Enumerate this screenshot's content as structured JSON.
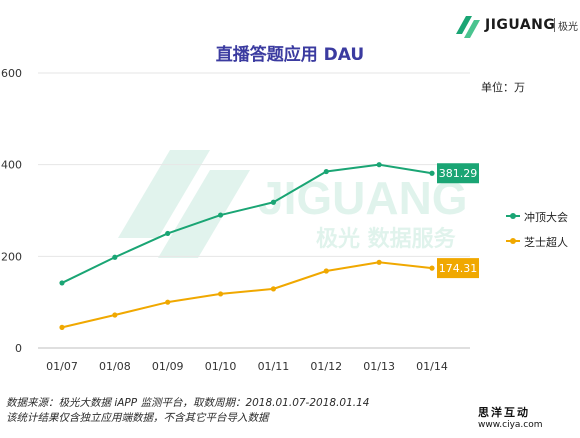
{
  "brand": {
    "name": "JIGUANG",
    "sub": "极光"
  },
  "title": "直播答题应用 DAU",
  "unit_label": "单位：万",
  "watermark_text": "极光 数据服务",
  "chart_data": {
    "type": "line",
    "title": "直播答题应用 DAU",
    "categories": [
      "01/07",
      "01/08",
      "01/09",
      "01/10",
      "01/11",
      "01/12",
      "01/13",
      "01/14"
    ],
    "y_ticks": [
      "0",
      "200",
      "400",
      "600"
    ],
    "ylim": [
      0,
      600
    ],
    "series": [
      {
        "name": "冲顶大会",
        "color": "#1aa574",
        "values": [
          142,
          198,
          250,
          290,
          318,
          385,
          400,
          381.29
        ],
        "end_label": "381.29"
      },
      {
        "name": "芝士超人",
        "color": "#f0a800",
        "values": [
          45,
          72,
          100,
          118,
          129,
          168,
          187,
          174.31
        ],
        "end_label": "174.31"
      }
    ]
  },
  "footer": {
    "line1": "数据来源：极光大数据 iAPP 监测平台，取数周期：2018.01.07-2018.01.14",
    "line2": "该统计结果仅含独立应用端数据，不含其它平台导入数据"
  },
  "corner": {
    "brand": "思洋互动",
    "url": "www.ciya.com"
  }
}
